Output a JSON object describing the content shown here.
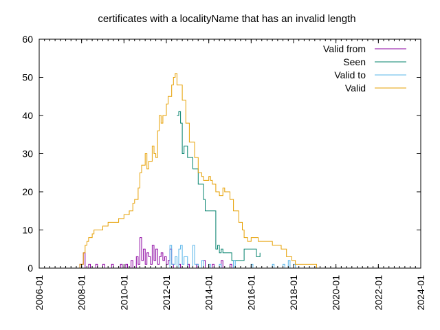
{
  "chart_data": {
    "type": "line",
    "title": "certificates with a localityName that has an invalid length",
    "xlabel": "",
    "ylabel": "",
    "xlim": [
      "2006-01",
      "2024-01"
    ],
    "ylim": [
      0,
      60
    ],
    "x_ticks": [
      "2006-01",
      "2008-01",
      "2010-01",
      "2012-01",
      "2014-01",
      "2016-01",
      "2018-01",
      "2020-01",
      "2022-01",
      "2024-01"
    ],
    "y_ticks": [
      0,
      10,
      20,
      30,
      40,
      50,
      60
    ],
    "grid": false,
    "legend_position": "top-right",
    "series": [
      {
        "name": "Valid from",
        "color": "#8b00a0",
        "points": [
          [
            "2007-10",
            0
          ],
          [
            "2007-12",
            1
          ],
          [
            "2008-01",
            1
          ],
          [
            "2008-02",
            4
          ],
          [
            "2008-03",
            0
          ],
          [
            "2008-05",
            1
          ],
          [
            "2008-06",
            0
          ],
          [
            "2008-09",
            1
          ],
          [
            "2008-10",
            0
          ],
          [
            "2009-01",
            1
          ],
          [
            "2009-02",
            0
          ],
          [
            "2009-06",
            1
          ],
          [
            "2009-07",
            0
          ],
          [
            "2009-11",
            1
          ],
          [
            "2009-12",
            0
          ],
          [
            "2010-02",
            1
          ],
          [
            "2010-03",
            0
          ],
          [
            "2010-05",
            2
          ],
          [
            "2010-06",
            0
          ],
          [
            "2010-08",
            3
          ],
          [
            "2010-09",
            1
          ],
          [
            "2010-10",
            8
          ],
          [
            "2010-11",
            2
          ],
          [
            "2010-12",
            5
          ],
          [
            "2011-01",
            1
          ],
          [
            "2011-02",
            4
          ],
          [
            "2011-03",
            3
          ],
          [
            "2011-04",
            1
          ],
          [
            "2011-05",
            6
          ],
          [
            "2011-06",
            2
          ],
          [
            "2011-07",
            5
          ],
          [
            "2011-08",
            1
          ],
          [
            "2011-09",
            3
          ],
          [
            "2011-10",
            4
          ],
          [
            "2011-11",
            2
          ],
          [
            "2011-12",
            3
          ],
          [
            "2012-01",
            1
          ],
          [
            "2012-02",
            2
          ],
          [
            "2012-03",
            5
          ],
          [
            "2012-04",
            1
          ],
          [
            "2012-05",
            0
          ],
          [
            "2012-08",
            1
          ],
          [
            "2012-09",
            0
          ],
          [
            "2013-01",
            1
          ],
          [
            "2013-02",
            0
          ],
          [
            "2013-06",
            1
          ],
          [
            "2013-07",
            0
          ],
          [
            "2013-10",
            2
          ],
          [
            "2013-11",
            0
          ],
          [
            "2014-03",
            1
          ],
          [
            "2014-04",
            0
          ],
          [
            "2014-08",
            2
          ],
          [
            "2014-09",
            0
          ],
          [
            "2015-01",
            1
          ],
          [
            "2015-02",
            0
          ]
        ]
      },
      {
        "name": "Seen",
        "color": "#00806b",
        "points": [
          [
            "2012-07",
            40
          ],
          [
            "2012-08",
            41
          ],
          [
            "2012-09",
            38
          ],
          [
            "2012-10",
            30
          ],
          [
            "2012-11",
            32
          ],
          [
            "2013-01",
            29
          ],
          [
            "2013-04",
            26
          ],
          [
            "2013-07",
            22
          ],
          [
            "2013-10",
            18
          ],
          [
            "2013-11",
            15
          ],
          [
            "2014-04",
            15
          ],
          [
            "2014-05",
            5
          ],
          [
            "2014-06",
            6
          ],
          [
            "2014-07",
            4
          ],
          [
            "2014-08",
            5
          ],
          [
            "2014-09",
            4
          ],
          [
            "2015-01",
            4
          ],
          [
            "2015-02",
            2
          ],
          [
            "2015-08",
            2
          ],
          [
            "2015-09",
            5
          ],
          [
            "2016-03",
            5
          ],
          [
            "2016-04",
            3
          ],
          [
            "2016-06",
            4
          ]
        ]
      },
      {
        "name": "Valid to",
        "color": "#56b4e9",
        "points": [
          [
            "2012-02",
            0
          ],
          [
            "2012-03",
            6
          ],
          [
            "2012-04",
            1
          ],
          [
            "2012-06",
            3
          ],
          [
            "2012-07",
            0
          ],
          [
            "2012-08",
            5
          ],
          [
            "2012-09",
            6
          ],
          [
            "2012-10",
            1
          ],
          [
            "2012-11",
            3
          ],
          [
            "2013-01",
            0
          ],
          [
            "2013-04",
            6
          ],
          [
            "2013-05",
            1
          ],
          [
            "2013-07",
            0
          ],
          [
            "2013-09",
            2
          ],
          [
            "2013-10",
            0
          ],
          [
            "2014-01",
            1
          ],
          [
            "2014-02",
            0
          ],
          [
            "2014-07",
            1
          ],
          [
            "2014-08",
            0
          ],
          [
            "2015-03",
            2
          ],
          [
            "2015-04",
            0
          ],
          [
            "2016-01",
            1
          ],
          [
            "2016-02",
            0
          ],
          [
            "2017-01",
            1
          ],
          [
            "2017-02",
            0
          ],
          [
            "2017-07",
            1
          ],
          [
            "2017-08",
            0
          ],
          [
            "2017-10",
            2
          ],
          [
            "2017-11",
            0
          ],
          [
            "2018-01",
            1
          ],
          [
            "2018-02",
            0
          ]
        ]
      },
      {
        "name": "Valid",
        "color": "#e69f00",
        "points": [
          [
            "2007-10",
            0
          ],
          [
            "2007-12",
            1
          ],
          [
            "2008-02",
            4
          ],
          [
            "2008-03",
            6
          ],
          [
            "2008-04",
            7
          ],
          [
            "2008-05",
            8
          ],
          [
            "2008-07",
            9
          ],
          [
            "2008-08",
            10
          ],
          [
            "2009-01",
            11
          ],
          [
            "2009-04",
            12
          ],
          [
            "2009-10",
            13
          ],
          [
            "2010-01",
            14
          ],
          [
            "2010-04",
            15
          ],
          [
            "2010-06",
            17
          ],
          [
            "2010-07",
            18
          ],
          [
            "2010-09",
            21
          ],
          [
            "2010-10",
            25
          ],
          [
            "2010-11",
            27
          ],
          [
            "2011-01",
            30
          ],
          [
            "2011-02",
            26
          ],
          [
            "2011-03",
            28
          ],
          [
            "2011-05",
            32
          ],
          [
            "2011-06",
            30
          ],
          [
            "2011-07",
            29
          ],
          [
            "2011-08",
            36
          ],
          [
            "2011-09",
            40
          ],
          [
            "2011-10",
            38
          ],
          [
            "2011-11",
            40
          ],
          [
            "2012-01",
            43
          ],
          [
            "2012-02",
            45
          ],
          [
            "2012-04",
            48
          ],
          [
            "2012-05",
            50
          ],
          [
            "2012-06",
            51
          ],
          [
            "2012-07",
            48
          ],
          [
            "2012-09",
            48
          ],
          [
            "2012-10",
            44
          ],
          [
            "2012-12",
            38
          ],
          [
            "2013-02",
            33
          ],
          [
            "2013-05",
            29
          ],
          [
            "2013-07",
            25
          ],
          [
            "2013-09",
            24
          ],
          [
            "2013-10",
            23
          ],
          [
            "2014-01",
            24
          ],
          [
            "2014-02",
            23
          ],
          [
            "2014-03",
            22
          ],
          [
            "2014-05",
            20
          ],
          [
            "2014-07",
            19
          ],
          [
            "2014-09",
            21
          ],
          [
            "2014-10",
            20
          ],
          [
            "2015-01",
            18
          ],
          [
            "2015-03",
            15
          ],
          [
            "2015-06",
            12
          ],
          [
            "2015-08",
            10
          ],
          [
            "2015-09",
            8
          ],
          [
            "2015-11",
            7
          ],
          [
            "2016-01",
            8
          ],
          [
            "2016-05",
            7
          ],
          [
            "2016-09",
            7
          ],
          [
            "2017-01",
            6
          ],
          [
            "2017-06",
            5
          ],
          [
            "2017-09",
            3
          ],
          [
            "2017-12",
            2
          ],
          [
            "2018-02",
            1
          ],
          [
            "2019-01",
            1
          ],
          [
            "2019-02",
            0
          ]
        ]
      }
    ]
  }
}
